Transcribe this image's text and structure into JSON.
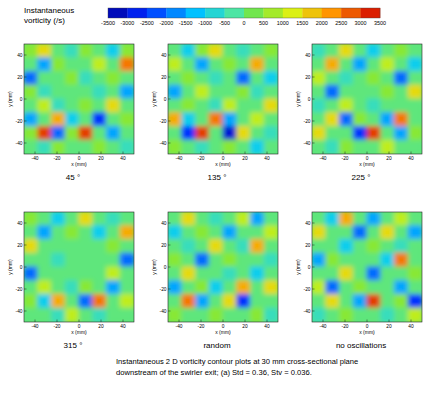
{
  "colorbar": {
    "title": [
      "Instantaneous",
      "vorticity (/s)"
    ],
    "range": [
      -3500,
      3500
    ],
    "ticks": [
      -3500,
      -3000,
      -2500,
      -2000,
      -1500,
      -1000,
      -500,
      0,
      500,
      1000,
      1500,
      2000,
      2500,
      3000,
      3500
    ]
  },
  "caption": [
    "Instantaneous 2 D vorticity contour plots at 30 mm cross-sectional plane",
    "downstream of the swirler exit; (a) Std = 0.36, Stv = 0.036."
  ],
  "chart_data": [
    {
      "type": "heatmap",
      "title": "45 °",
      "x_label": "x (mm)",
      "y_label": "y (mm)",
      "xlim": [
        -50,
        50
      ],
      "ylim": [
        -50,
        50
      ],
      "xticks": [
        -40,
        -20,
        0,
        20,
        40
      ],
      "yticks": [
        -40,
        -20,
        0,
        20,
        40
      ],
      "x": [
        -43.75,
        -31.25,
        -18.75,
        -6.25,
        6.25,
        18.75,
        31.25,
        43.75
      ],
      "y": [
        43.75,
        31.25,
        18.75,
        6.25,
        -6.25,
        -18.75,
        -31.25,
        -43.75
      ],
      "cells": [
        [
          500,
          1500,
          0,
          -500,
          500,
          0,
          -1000,
          500
        ],
        [
          0,
          -1500,
          500,
          0,
          0,
          1000,
          0,
          2500
        ],
        [
          -2000,
          0,
          0,
          500,
          -500,
          0,
          500,
          0
        ],
        [
          500,
          -500,
          0,
          0,
          0,
          -500,
          0,
          -1500
        ],
        [
          0,
          1000,
          -500,
          0,
          500,
          0,
          1500,
          0
        ],
        [
          -1500,
          0,
          2000,
          -1000,
          0,
          -2500,
          0,
          500
        ],
        [
          500,
          3000,
          -2000,
          500,
          3000,
          0,
          -1500,
          0
        ],
        [
          0,
          -500,
          500,
          0,
          0,
          500,
          0,
          -500
        ]
      ]
    },
    {
      "type": "heatmap",
      "title": "135 °",
      "x_label": "x (mm)",
      "y_label": "y (mm)",
      "xlim": [
        -50,
        50
      ],
      "ylim": [
        -50,
        50
      ],
      "xticks": [
        -40,
        -20,
        0,
        20,
        40
      ],
      "yticks": [
        -40,
        -20,
        0,
        20,
        40
      ],
      "x": [
        -43.75,
        -31.25,
        -18.75,
        -6.25,
        6.25,
        18.75,
        31.25,
        43.75
      ],
      "y": [
        43.75,
        31.25,
        18.75,
        6.25,
        -6.25,
        -18.75,
        -31.25,
        -43.75
      ],
      "cells": [
        [
          0,
          -1000,
          500,
          1500,
          0,
          -500,
          0,
          500
        ],
        [
          1000,
          0,
          -1500,
          0,
          500,
          0,
          2000,
          0
        ],
        [
          0,
          500,
          0,
          -500,
          0,
          -2000,
          0,
          -1000
        ],
        [
          -1500,
          0,
          1000,
          0,
          0,
          500,
          -500,
          0
        ],
        [
          0,
          500,
          0,
          -500,
          1000,
          0,
          0,
          1500
        ],
        [
          2000,
          -1000,
          0,
          2500,
          -1500,
          0,
          1000,
          0
        ],
        [
          0,
          -2500,
          3000,
          0,
          -3000,
          1500,
          0,
          -500
        ],
        [
          500,
          0,
          -500,
          0,
          500,
          0,
          -1000,
          0
        ]
      ]
    },
    {
      "type": "heatmap",
      "title": "225 °",
      "x_label": "x (mm)",
      "y_label": "y (mm)",
      "xlim": [
        -50,
        50
      ],
      "ylim": [
        -50,
        50
      ],
      "xticks": [
        -40,
        -20,
        0,
        20,
        40
      ],
      "yticks": [
        -40,
        -20,
        0,
        20,
        40
      ],
      "x": [
        -43.75,
        -31.25,
        -18.75,
        -6.25,
        6.25,
        18.75,
        31.25,
        43.75
      ],
      "y": [
        43.75,
        31.25,
        18.75,
        6.25,
        -6.25,
        -18.75,
        -31.25,
        -43.75
      ],
      "cells": [
        [
          -500,
          0,
          1500,
          0,
          -1000,
          0,
          500,
          0
        ],
        [
          0,
          2000,
          0,
          -1500,
          0,
          1000,
          0,
          -1000
        ],
        [
          1000,
          0,
          -500,
          0,
          500,
          0,
          -2000,
          0
        ],
        [
          0,
          -2000,
          0,
          0,
          0,
          500,
          0,
          1500
        ],
        [
          -500,
          0,
          1000,
          0,
          -500,
          0,
          0,
          0
        ],
        [
          0,
          1500,
          -2000,
          500,
          0,
          -1500,
          2500,
          0
        ],
        [
          1500,
          0,
          0,
          -2500,
          3000,
          0,
          -1500,
          500
        ],
        [
          0,
          -500,
          500,
          0,
          0,
          1000,
          0,
          0
        ]
      ]
    },
    {
      "type": "heatmap",
      "title": "315 °",
      "x_label": "x (mm)",
      "y_label": "y (mm)",
      "xlim": [
        -50,
        50
      ],
      "ylim": [
        -50,
        50
      ],
      "xticks": [
        -40,
        -20,
        0,
        20,
        40
      ],
      "yticks": [
        -40,
        -20,
        0,
        20,
        40
      ],
      "x": [
        -43.75,
        -31.25,
        -18.75,
        -6.25,
        6.25,
        18.75,
        31.25,
        43.75
      ],
      "y": [
        43.75,
        31.25,
        18.75,
        6.25,
        -6.25,
        -18.75,
        -31.25,
        -43.75
      ],
      "cells": [
        [
          500,
          0,
          -1000,
          0,
          1500,
          0,
          -500,
          0
        ],
        [
          0,
          -1500,
          0,
          500,
          0,
          -1000,
          0,
          2000
        ],
        [
          1500,
          0,
          0,
          0,
          0,
          0,
          500,
          0
        ],
        [
          0,
          0,
          -500,
          0,
          0,
          0,
          0,
          -2000
        ],
        [
          -2000,
          0,
          0,
          0,
          0,
          0,
          1000,
          0
        ],
        [
          0,
          1000,
          0,
          -500,
          500,
          0,
          -1500,
          0
        ],
        [
          500,
          -1000,
          2000,
          0,
          -2000,
          2500,
          0,
          1000
        ],
        [
          0,
          0,
          -500,
          1000,
          0,
          -500,
          0,
          0
        ]
      ]
    },
    {
      "type": "heatmap",
      "title": "random",
      "x_label": "x (mm)",
      "y_label": "y (mm)",
      "xlim": [
        -50,
        50
      ],
      "ylim": [
        -50,
        50
      ],
      "xticks": [
        -40,
        -20,
        0,
        20,
        40
      ],
      "yticks": [
        -40,
        -20,
        0,
        20,
        40
      ],
      "x": [
        -43.75,
        -31.25,
        -18.75,
        -6.25,
        6.25,
        18.75,
        31.25,
        43.75
      ],
      "y": [
        43.75,
        31.25,
        18.75,
        6.25,
        -6.25,
        -18.75,
        -31.25,
        -43.75
      ],
      "cells": [
        [
          0,
          1500,
          0,
          -500,
          0,
          1000,
          -1500,
          0
        ],
        [
          -1000,
          0,
          500,
          0,
          -1500,
          0,
          0,
          1000
        ],
        [
          0,
          -500,
          0,
          1500,
          0,
          -500,
          2000,
          0
        ],
        [
          500,
          0,
          -2000,
          0,
          500,
          0,
          0,
          -500
        ],
        [
          0,
          1500,
          0,
          0,
          -500,
          0,
          -1000,
          0
        ],
        [
          -1500,
          0,
          500,
          -1000,
          0,
          2000,
          0,
          1500
        ],
        [
          0,
          2500,
          -1500,
          0,
          1500,
          -2500,
          0,
          0
        ],
        [
          500,
          0,
          0,
          500,
          0,
          0,
          500,
          -500
        ]
      ]
    },
    {
      "type": "heatmap",
      "title": "no oscillations",
      "x_label": "x (mm)",
      "y_label": "y (mm)",
      "xlim": [
        -50,
        50
      ],
      "ylim": [
        -50,
        50
      ],
      "xticks": [
        -40,
        -20,
        0,
        20,
        40
      ],
      "yticks": [
        -40,
        -20,
        0,
        20,
        40
      ],
      "x": [
        -43.75,
        -31.25,
        -18.75,
        -6.25,
        6.25,
        18.75,
        31.25,
        43.75
      ],
      "y": [
        43.75,
        31.25,
        18.75,
        6.25,
        -6.25,
        -18.75,
        -31.25,
        -43.75
      ],
      "cells": [
        [
          0,
          -1000,
          2000,
          0,
          -1500,
          0,
          1000,
          0
        ],
        [
          1500,
          0,
          0,
          -2000,
          0,
          1500,
          0,
          -1500
        ],
        [
          0,
          0,
          -1000,
          0,
          500,
          0,
          -500,
          0
        ],
        [
          -1500,
          500,
          0,
          0,
          0,
          -1000,
          2500,
          0
        ],
        [
          0,
          0,
          1500,
          0,
          -2000,
          0,
          0,
          500
        ],
        [
          1000,
          -2000,
          0,
          500,
          0,
          0,
          -1500,
          0
        ],
        [
          0,
          1500,
          0,
          -1500,
          3000,
          0,
          500,
          -2500
        ],
        [
          -500,
          0,
          500,
          0,
          0,
          -500,
          0,
          1000
        ]
      ]
    }
  ]
}
